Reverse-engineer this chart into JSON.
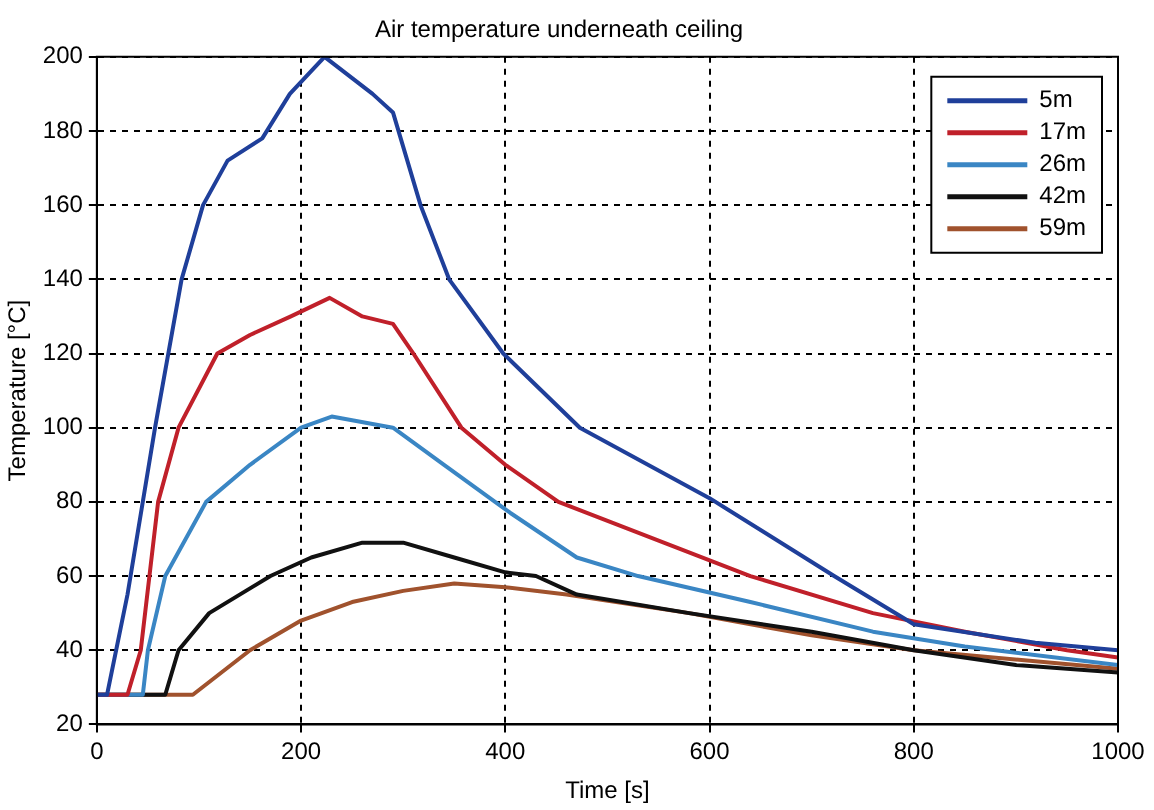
{
  "chart_data": {
    "type": "line",
    "title": "Air temperature underneath ceiling",
    "xlabel": "Time [s]",
    "ylabel": "Temperature [°C]",
    "xlim": [
      0,
      1000
    ],
    "xticks": [
      0,
      200,
      400,
      600,
      800,
      1000
    ],
    "ylim": [
      20,
      200
    ],
    "yticks": [
      20,
      40,
      60,
      80,
      100,
      120,
      140,
      160,
      180,
      200
    ],
    "grid": true,
    "legend": "top right",
    "marker": "none",
    "line_style": "solid",
    "series": [
      {
        "name": "5m",
        "color": "#1f3f9a",
        "x": [
          0,
          10,
          30,
          57,
          83,
          104,
          128,
          162,
          189,
          223,
          270,
          290,
          317,
          345,
          398,
          473,
          600,
          722,
          800,
          919,
          1000
        ],
        "values": [
          28,
          28,
          55,
          100,
          140,
          160,
          172,
          178,
          190,
          200,
          190,
          185,
          160,
          140,
          120,
          100,
          81,
          60,
          47,
          42,
          40
        ]
      },
      {
        "name": "17m",
        "color": "#c0202a",
        "x": [
          0,
          30,
          43,
          60,
          80,
          118,
          150,
          190,
          228,
          260,
          290,
          310,
          357,
          400,
          452,
          640,
          760,
          850,
          950,
          1000
        ],
        "values": [
          28,
          28,
          40,
          80,
          100,
          120,
          125,
          130,
          135,
          130,
          128,
          120,
          100,
          90,
          80,
          60,
          50,
          45,
          40,
          38
        ]
      },
      {
        "name": "26m",
        "color": "#3a86c4",
        "x": [
          0,
          45,
          50,
          67,
          107,
          150,
          200,
          230,
          290,
          340,
          405,
          470,
          530,
          640,
          760,
          850,
          1000
        ],
        "values": [
          28,
          28,
          40,
          60,
          80,
          90,
          100,
          103,
          100,
          90,
          77,
          65,
          60,
          53,
          45,
          41,
          36
        ]
      },
      {
        "name": "42m",
        "color": "#111111",
        "x": [
          0,
          67,
          80,
          110,
          170,
          210,
          260,
          300,
          350,
          400,
          430,
          470,
          580,
          700,
          800,
          900,
          1000
        ],
        "values": [
          28,
          28,
          40,
          50,
          60,
          65,
          69,
          69,
          65,
          61,
          60,
          55,
          50,
          45,
          40,
          36,
          34
        ]
      },
      {
        "name": "59m",
        "color": "#a0522d",
        "x": [
          0,
          94,
          150,
          200,
          250,
          300,
          350,
          400,
          460,
          580,
          700,
          800,
          1000
        ],
        "values": [
          28,
          28,
          40,
          48,
          53,
          56,
          58,
          57,
          55,
          50,
          44,
          40,
          35
        ]
      }
    ]
  }
}
